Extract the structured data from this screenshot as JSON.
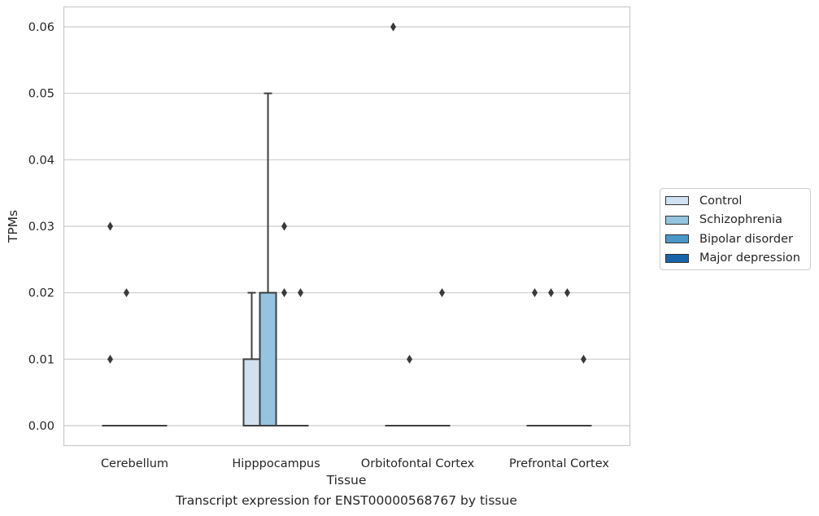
{
  "chart_data": {
    "type": "boxplot",
    "xlabel": "Tissue",
    "ylabel": "TPMs",
    "caption": "Transcript expression for ENST00000568767 by tissue",
    "ylim": [
      -0.003,
      0.063
    ],
    "yticks": [
      "0.00",
      "0.01",
      "0.02",
      "0.03",
      "0.04",
      "0.05",
      "0.06"
    ],
    "grid": "horizontal",
    "legend_position": "right",
    "categories": [
      "Cerebellum",
      "Hipppocampus",
      "Orbitofontal Cortex",
      "Prefrontal Cortex"
    ],
    "series": [
      {
        "name": "Control",
        "color": "#d0e1f2"
      },
      {
        "name": "Schizophrenia",
        "color": "#94c4df"
      },
      {
        "name": "Bipolar disorder",
        "color": "#4a98c9"
      },
      {
        "name": "Major depression",
        "color": "#1764ab"
      }
    ],
    "boxes": [
      [
        {
          "q1": 0,
          "median": 0,
          "q3": 0,
          "whisker_low": 0,
          "whisker_high": 0,
          "outliers": [
            0.01,
            0.03
          ]
        },
        {
          "q1": 0,
          "median": 0,
          "q3": 0,
          "whisker_low": 0,
          "whisker_high": 0,
          "outliers": [
            0.02
          ]
        },
        {
          "q1": 0,
          "median": 0,
          "q3": 0,
          "whisker_low": 0,
          "whisker_high": 0,
          "outliers": []
        },
        {
          "q1": 0,
          "median": 0,
          "q3": 0,
          "whisker_low": 0,
          "whisker_high": 0,
          "outliers": []
        }
      ],
      [
        {
          "q1": 0,
          "median": 0,
          "q3": 0.01,
          "whisker_low": 0,
          "whisker_high": 0.02,
          "outliers": []
        },
        {
          "q1": 0,
          "median": 0,
          "q3": 0.02,
          "whisker_low": 0,
          "whisker_high": 0.05,
          "outliers": []
        },
        {
          "q1": 0,
          "median": 0,
          "q3": 0,
          "whisker_low": 0,
          "whisker_high": 0,
          "outliers": [
            0.02,
            0.03
          ]
        },
        {
          "q1": 0,
          "median": 0,
          "q3": 0,
          "whisker_low": 0,
          "whisker_high": 0,
          "outliers": [
            0.02
          ]
        }
      ],
      [
        {
          "q1": 0,
          "median": 0,
          "q3": 0,
          "whisker_low": 0,
          "whisker_high": 0,
          "outliers": [
            0.06
          ]
        },
        {
          "q1": 0,
          "median": 0,
          "q3": 0,
          "whisker_low": 0,
          "whisker_high": 0,
          "outliers": [
            0.01
          ]
        },
        {
          "q1": 0,
          "median": 0,
          "q3": 0,
          "whisker_low": 0,
          "whisker_high": 0,
          "outliers": []
        },
        {
          "q1": 0,
          "median": 0,
          "q3": 0,
          "whisker_low": 0,
          "whisker_high": 0,
          "outliers": [
            0.02
          ]
        }
      ],
      [
        {
          "q1": 0,
          "median": 0,
          "q3": 0,
          "whisker_low": 0,
          "whisker_high": 0,
          "outliers": [
            0.02
          ]
        },
        {
          "q1": 0,
          "median": 0,
          "q3": 0,
          "whisker_low": 0,
          "whisker_high": 0,
          "outliers": [
            0.02
          ]
        },
        {
          "q1": 0,
          "median": 0,
          "q3": 0,
          "whisker_low": 0,
          "whisker_high": 0,
          "outliers": [
            0.02
          ]
        },
        {
          "q1": 0,
          "median": 0,
          "q3": 0,
          "whisker_low": 0,
          "whisker_high": 0,
          "outliers": [
            0.01
          ]
        }
      ]
    ]
  }
}
